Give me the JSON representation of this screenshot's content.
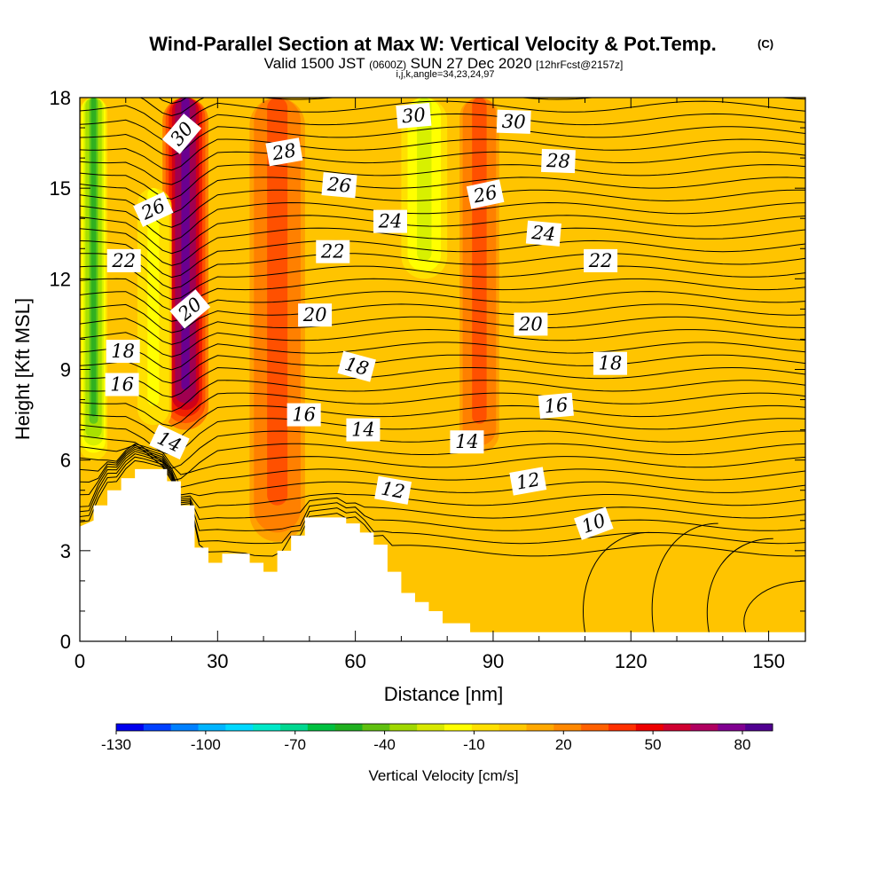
{
  "chart_data": {
    "type": "heatmap",
    "title": "Wind-Parallel Section at Max W: Vertical Velocity & Pot.Temp.",
    "title_tag": "(C)",
    "subtitle_a": "Valid 1500 JST",
    "subtitle_b": "(0600Z)",
    "subtitle_c": "SUN 27 Dec 2020",
    "subtitle_d": "[12hrFcst@2157z]",
    "subtitle2": "i,j,k,angle=34,23,24,97",
    "xlabel": "Distance [nm]",
    "ylabel": "Height [Kft MSL]",
    "xlim": [
      0,
      158
    ],
    "ylim": [
      0,
      18
    ],
    "x_ticks": [
      "0",
      "30",
      "60",
      "90",
      "120",
      "150"
    ],
    "y_ticks": [
      "0",
      "3",
      "6",
      "9",
      "12",
      "15",
      "18"
    ],
    "colorbar": {
      "title": "Vertical Velocity [cm/s]",
      "labels": [
        "-130",
        "-100",
        "-70",
        "-40",
        "-10",
        "20",
        "50",
        "80"
      ],
      "colors": [
        "#0000ee",
        "#0040ff",
        "#0080ff",
        "#00b4ff",
        "#00d8ff",
        "#00e8c8",
        "#00d890",
        "#00c040",
        "#20b020",
        "#60c010",
        "#a0d800",
        "#d8e800",
        "#ffff00",
        "#ffe000",
        "#ffc800",
        "#ffa800",
        "#ff8800",
        "#ff6000",
        "#ff3000",
        "#ee0000",
        "#d00030",
        "#b00060",
        "#800090",
        "#500090"
      ]
    },
    "background_color": "#ffc400",
    "velocity_features": [
      {
        "kind": "updraft",
        "x_range": [
          18,
          28
        ],
        "z_range": [
          7,
          18
        ],
        "peak_cm_s": 80
      },
      {
        "kind": "downdraft",
        "x_range": [
          0,
          6
        ],
        "z_range": [
          6,
          18
        ],
        "peak_cm_s": -40
      },
      {
        "kind": "downdraft",
        "x_range": [
          12,
          20
        ],
        "z_range": [
          7,
          15
        ],
        "peak_cm_s": -10
      },
      {
        "kind": "updraft",
        "x_range": [
          36,
          50
        ],
        "z_range": [
          3,
          18
        ],
        "peak_cm_s": 30
      },
      {
        "kind": "downdraft",
        "x_range": [
          70,
          80
        ],
        "z_range": [
          12,
          18
        ],
        "peak_cm_s": -20
      },
      {
        "kind": "updraft",
        "x_range": [
          82,
          92
        ],
        "z_range": [
          6,
          18
        ],
        "peak_cm_s": 30
      }
    ],
    "terrain_heights_kft": [
      [
        0,
        3.8
      ],
      [
        3,
        4.0
      ],
      [
        3,
        4.5
      ],
      [
        6,
        4.5
      ],
      [
        6,
        5.0
      ],
      [
        9,
        5.0
      ],
      [
        9,
        5.4
      ],
      [
        12,
        5.4
      ],
      [
        12,
        5.7
      ],
      [
        19,
        5.7
      ],
      [
        19,
        5.3
      ],
      [
        22,
        5.3
      ],
      [
        22,
        4.5
      ],
      [
        25,
        4.5
      ],
      [
        25,
        3.1
      ],
      [
        28,
        3.1
      ],
      [
        28,
        2.6
      ],
      [
        31,
        2.6
      ],
      [
        31,
        2.9
      ],
      [
        37,
        2.9
      ],
      [
        37,
        2.6
      ],
      [
        40,
        2.6
      ],
      [
        40,
        2.3
      ],
      [
        43,
        2.3
      ],
      [
        43,
        3.0
      ],
      [
        46,
        3.0
      ],
      [
        46,
        3.5
      ],
      [
        49,
        3.5
      ],
      [
        49,
        4.1
      ],
      [
        58,
        4.1
      ],
      [
        58,
        3.9
      ],
      [
        61,
        3.9
      ],
      [
        61,
        3.6
      ],
      [
        64,
        3.6
      ],
      [
        64,
        3.2
      ],
      [
        67,
        3.2
      ],
      [
        67,
        2.3
      ],
      [
        70,
        2.3
      ],
      [
        70,
        1.6
      ],
      [
        73,
        1.6
      ],
      [
        73,
        1.3
      ],
      [
        76,
        1.3
      ],
      [
        76,
        1.0
      ],
      [
        79,
        1.0
      ],
      [
        79,
        0.6
      ],
      [
        85,
        0.6
      ],
      [
        85,
        0.3
      ],
      [
        158,
        0.3
      ],
      [
        158,
        0
      ]
    ],
    "theta_contours_c": [
      10,
      12,
      14,
      16,
      18,
      20,
      22,
      24,
      26,
      28,
      30
    ],
    "contour_labels": [
      {
        "text": "30",
        "x": 22.2,
        "z": 16.8,
        "angle": -50
      },
      {
        "text": "30",
        "x": 72.7,
        "z": 17.4,
        "angle": -5
      },
      {
        "text": "30",
        "x": 94.5,
        "z": 17.2,
        "angle": 2
      },
      {
        "text": "28",
        "x": 44.5,
        "z": 16.2,
        "angle": -10
      },
      {
        "text": "28",
        "x": 104.2,
        "z": 15.9,
        "angle": 2
      },
      {
        "text": "26",
        "x": 16.0,
        "z": 14.3,
        "angle": -25
      },
      {
        "text": "26",
        "x": 56.5,
        "z": 15.1,
        "angle": 5
      },
      {
        "text": "26",
        "x": 88.3,
        "z": 14.8,
        "angle": -12
      },
      {
        "text": "24",
        "x": 67.6,
        "z": 13.9,
        "angle": 0
      },
      {
        "text": "24",
        "x": 101.0,
        "z": 13.5,
        "angle": 5
      },
      {
        "text": "22",
        "x": 9.6,
        "z": 12.6,
        "angle": 0
      },
      {
        "text": "22",
        "x": 55.1,
        "z": 12.9,
        "angle": 0
      },
      {
        "text": "22",
        "x": 113.4,
        "z": 12.6,
        "angle": 0
      },
      {
        "text": "20",
        "x": 24.0,
        "z": 11.0,
        "angle": -40
      },
      {
        "text": "20",
        "x": 51.2,
        "z": 10.8,
        "angle": 0
      },
      {
        "text": "20",
        "x": 98.2,
        "z": 10.5,
        "angle": 0
      },
      {
        "text": "18",
        "x": 9.4,
        "z": 9.6,
        "angle": 0
      },
      {
        "text": "18",
        "x": 60.3,
        "z": 9.1,
        "angle": 15
      },
      {
        "text": "18",
        "x": 115.5,
        "z": 9.2,
        "angle": 0
      },
      {
        "text": "16",
        "x": 9.2,
        "z": 8.5,
        "angle": 0
      },
      {
        "text": "16",
        "x": 48.8,
        "z": 7.5,
        "angle": 0
      },
      {
        "text": "16",
        "x": 103.7,
        "z": 7.8,
        "angle": -5
      },
      {
        "text": "14",
        "x": 19.5,
        "z": 6.6,
        "angle": 25
      },
      {
        "text": "14",
        "x": 61.7,
        "z": 7.0,
        "angle": 0
      },
      {
        "text": "14",
        "x": 84.3,
        "z": 6.6,
        "angle": 0
      },
      {
        "text": "12",
        "x": 68.2,
        "z": 5.0,
        "angle": 10
      },
      {
        "text": "12",
        "x": 97.6,
        "z": 5.3,
        "angle": -10
      },
      {
        "text": "10",
        "x": 111.9,
        "z": 3.9,
        "angle": -20
      }
    ]
  }
}
